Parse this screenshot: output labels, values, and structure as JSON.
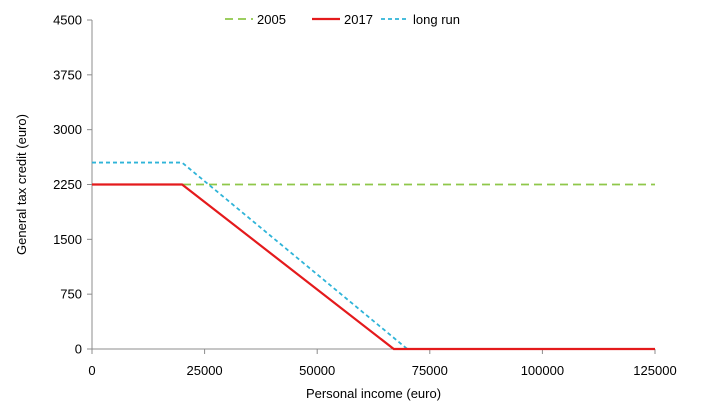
{
  "chart_data": {
    "type": "line",
    "xlabel": "Personal income (euro)",
    "ylabel": "General tax credit (euro)",
    "xlim": [
      0,
      125000
    ],
    "ylim": [
      0,
      4500
    ],
    "x_ticks": [
      "0",
      "25000",
      "50000",
      "75000",
      "100000",
      "125000"
    ],
    "y_ticks": [
      "0",
      "750",
      "1500",
      "2250",
      "3000",
      "3750",
      "4500"
    ],
    "grid": false,
    "legend_position": "top",
    "series": [
      {
        "name": "2005",
        "color": "#8fc74a",
        "dash": "dashed",
        "points": [
          [
            0,
            2250
          ],
          [
            125000,
            2250
          ]
        ]
      },
      {
        "name": "2017",
        "color": "#e41a1c",
        "dash": "solid",
        "points": [
          [
            0,
            2250
          ],
          [
            20000,
            2250
          ],
          [
            67000,
            0
          ],
          [
            125000,
            0
          ]
        ]
      },
      {
        "name": "long run",
        "color": "#2fb4d8",
        "dash": "dotted",
        "points": [
          [
            0,
            2550
          ],
          [
            20000,
            2550
          ],
          [
            70000,
            0
          ],
          [
            125000,
            0
          ]
        ]
      }
    ]
  }
}
